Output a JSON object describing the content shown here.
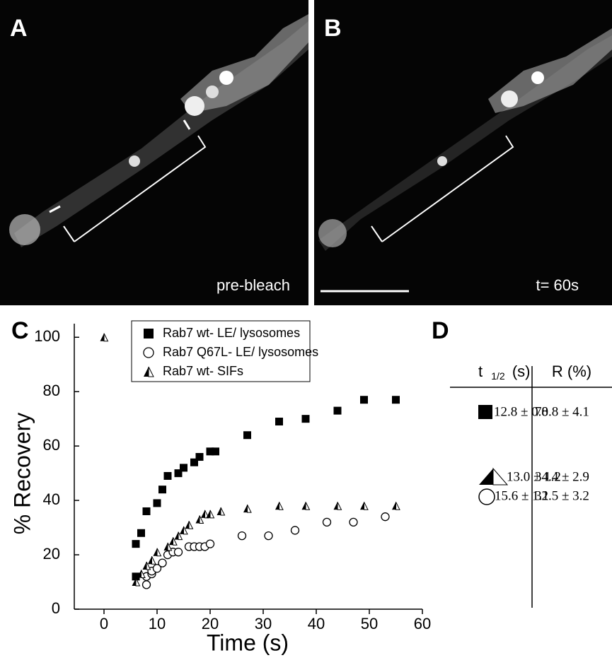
{
  "panels": [
    {
      "label": "A",
      "caption": "pre-bleach"
    },
    {
      "label": "B",
      "caption": "t= 60s"
    }
  ],
  "chart_data": {
    "type": "scatter",
    "panel_label": "C",
    "x_label": "Time (s)",
    "y_label": "% Recovery",
    "xlim": [
      -5.6,
      60
    ],
    "xticks": [
      0,
      10,
      20,
      30,
      40,
      50,
      60
    ],
    "ylim": [
      0,
      105
    ],
    "yticks": [
      0,
      20,
      40,
      60,
      80,
      100
    ],
    "series": [
      {
        "name": "Rab7 wt- LE/ lysosomes",
        "color": "#000000",
        "marker": "square",
        "x": [
          6,
          6,
          7,
          8,
          10,
          11,
          12,
          14,
          15,
          17,
          18,
          20,
          21,
          27,
          33,
          38,
          44,
          49,
          55
        ],
        "values": [
          12,
          24,
          28,
          36,
          39,
          44,
          49,
          50,
          52,
          54,
          56,
          58,
          58,
          64,
          69,
          70,
          73,
          77,
          77
        ]
      },
      {
        "name": "Rab7 Q67L- LE/ lysosomes",
        "color": "#000000",
        "marker": "circle",
        "x": [
          8,
          8,
          9,
          9,
          10,
          11,
          12,
          13,
          14,
          16,
          17,
          18,
          19,
          20,
          26,
          31,
          36,
          42,
          47,
          53
        ],
        "values": [
          9,
          12,
          13,
          14,
          15,
          17,
          20,
          21,
          21,
          23,
          23,
          23,
          23,
          24,
          27,
          27,
          29,
          32,
          32,
          34
        ]
      },
      {
        "name": "Rab7 wt- SIFs",
        "color": "#000000",
        "marker": "half-triangle",
        "x": [
          0,
          6,
          7,
          8,
          9,
          10,
          12,
          13,
          14,
          15,
          16,
          18,
          19,
          20,
          22,
          27,
          33,
          38,
          44,
          49,
          55
        ],
        "values": [
          100,
          10,
          13,
          16,
          18,
          21,
          23,
          25,
          27,
          29,
          31,
          33,
          35,
          35,
          36,
          37,
          38,
          38,
          38,
          38,
          38
        ]
      }
    ]
  },
  "table": {
    "panel_label": "D",
    "header": [
      {
        "main": "t",
        "sub": "1/2",
        "unit": "(s)"
      },
      "R (%)"
    ],
    "rows": [
      [
        "12.8 ± 0.8",
        "70.8 ± 4.1"
      ],
      [
        "13.0 ± 1.2",
        "34.4 ± 2.9"
      ],
      [
        "15.6 ± 1.1",
        "32.5 ± 3.2"
      ]
    ]
  }
}
